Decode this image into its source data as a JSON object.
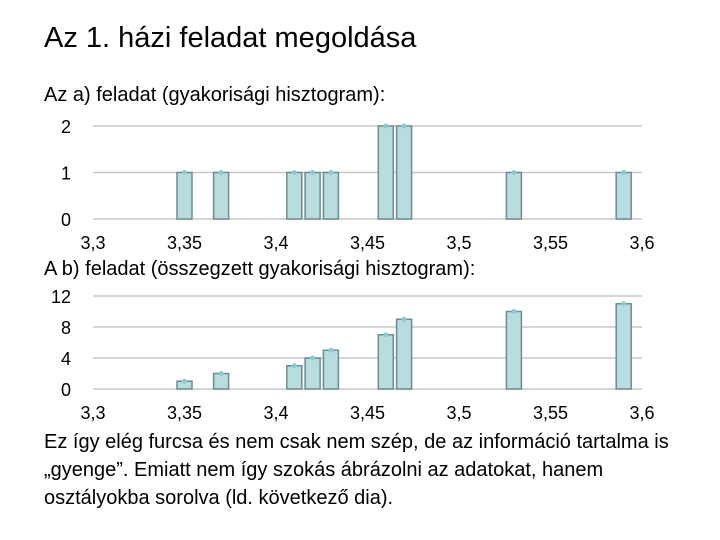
{
  "slide": {
    "title": "Az 1. házi feladat megoldása",
    "subheading_a": "Az a) feladat (gyakorisági hisztogram):",
    "subheading_b": "A b) feladat (összegzett gyakorisági hisztogram):",
    "body": "Ez így elég furcsa és nem csak nem szép, de az információ tartalma is „gyenge”. Emiatt nem így szokás ábrázolni az adatokat, hanem osztályokba sorolva (ld. következő dia)."
  },
  "colors": {
    "bar_fill": "#b7dde1",
    "bar_stroke": "#6e8c8f",
    "grid": "#c8c8c8",
    "marker": "#8fc9cf"
  },
  "chart_data": [
    {
      "type": "bar",
      "title": "",
      "x": [
        3.35,
        3.37,
        3.41,
        3.42,
        3.43,
        3.46,
        3.47,
        3.53,
        3.59
      ],
      "values": [
        1,
        1,
        1,
        1,
        1,
        2,
        2,
        1,
        1
      ],
      "xlim": [
        3.3,
        3.6
      ],
      "ylim": [
        0,
        2
      ],
      "xticks": [
        "3,3",
        "3,35",
        "3,4",
        "3,45",
        "3,5",
        "3,55",
        "3,6"
      ],
      "yticks": [
        "0",
        "1",
        "2"
      ],
      "grid": true
    },
    {
      "type": "bar",
      "title": "",
      "x": [
        3.35,
        3.37,
        3.41,
        3.42,
        3.43,
        3.46,
        3.47,
        3.53,
        3.59
      ],
      "values": [
        1,
        2,
        3,
        4,
        5,
        7,
        9,
        10,
        11
      ],
      "xlim": [
        3.3,
        3.6
      ],
      "ylim": [
        0,
        12
      ],
      "xticks": [
        "3,3",
        "3,35",
        "3,4",
        "3,45",
        "3,5",
        "3,55",
        "3,6"
      ],
      "yticks": [
        "0",
        "4",
        "8",
        "12"
      ],
      "grid": true
    }
  ]
}
